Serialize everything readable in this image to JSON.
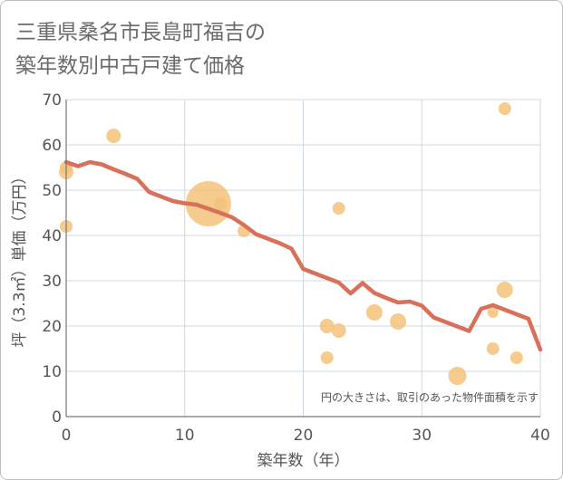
{
  "title_line1": "三重県桑名市長島町福吉の",
  "title_line2": "築年数別中古戸建て価格",
  "chart_data": {
    "type": "scatter",
    "title": "三重県桑名市長島町福吉の築年数別中古戸建て価格",
    "xlabel": "築年数（年）",
    "ylabel": "坪（3.3㎡）単価（万円）",
    "xlim": [
      0,
      40
    ],
    "ylim": [
      0,
      70
    ],
    "xticks": [
      0,
      10,
      20,
      30,
      40
    ],
    "yticks": [
      0,
      10,
      20,
      30,
      40,
      50,
      60,
      70
    ],
    "grid": true,
    "note": "円の大きさは、取引のあった物件面積を示す",
    "colors": {
      "bubble": "#f5c27a",
      "line": "#d9705a",
      "grid": "#d0d8e0",
      "axis": "#777777"
    },
    "bubbles": [
      {
        "x": 0,
        "y": 54,
        "size": 8
      },
      {
        "x": 0,
        "y": 55,
        "size": 7
      },
      {
        "x": 0,
        "y": 42,
        "size": 7
      },
      {
        "x": 4,
        "y": 62,
        "size": 8
      },
      {
        "x": 12,
        "y": 47,
        "size": 25
      },
      {
        "x": 13,
        "y": 47,
        "size": 7
      },
      {
        "x": 15,
        "y": 41,
        "size": 7
      },
      {
        "x": 22,
        "y": 20,
        "size": 8
      },
      {
        "x": 22,
        "y": 13,
        "size": 7
      },
      {
        "x": 23,
        "y": 46,
        "size": 7
      },
      {
        "x": 23,
        "y": 19,
        "size": 8
      },
      {
        "x": 26,
        "y": 23,
        "size": 9
      },
      {
        "x": 28,
        "y": 21,
        "size": 9
      },
      {
        "x": 33,
        "y": 9,
        "size": 10
      },
      {
        "x": 36,
        "y": 23,
        "size": 6
      },
      {
        "x": 36,
        "y": 15,
        "size": 7
      },
      {
        "x": 37,
        "y": 68,
        "size": 7
      },
      {
        "x": 37,
        "y": 28,
        "size": 9
      },
      {
        "x": 38,
        "y": 13,
        "size": 7
      }
    ],
    "trend": {
      "x": [
        0,
        1,
        2,
        3,
        4,
        5,
        6,
        7,
        8,
        9,
        10,
        11,
        12,
        13,
        14,
        15,
        16,
        17,
        18,
        19,
        20,
        21,
        22,
        23,
        24,
        25,
        26,
        27,
        28,
        29,
        30,
        31,
        32,
        33,
        34,
        35,
        36,
        37,
        38,
        39,
        40
      ],
      "y": [
        56.2,
        55.3,
        56.2,
        55.7,
        54.6,
        53.6,
        52.5,
        49.6,
        48.6,
        47.6,
        47.1,
        46.8,
        45.9,
        45.0,
        44.0,
        42.3,
        40.3,
        39.3,
        38.3,
        37.1,
        32.6,
        31.6,
        30.6,
        29.6,
        27.2,
        29.5,
        27.3,
        26.2,
        25.2,
        25.4,
        24.5,
        21.9,
        20.9,
        19.9,
        18.9,
        23.8,
        24.6,
        23.6,
        22.6,
        21.6,
        14.8
      ]
    }
  }
}
